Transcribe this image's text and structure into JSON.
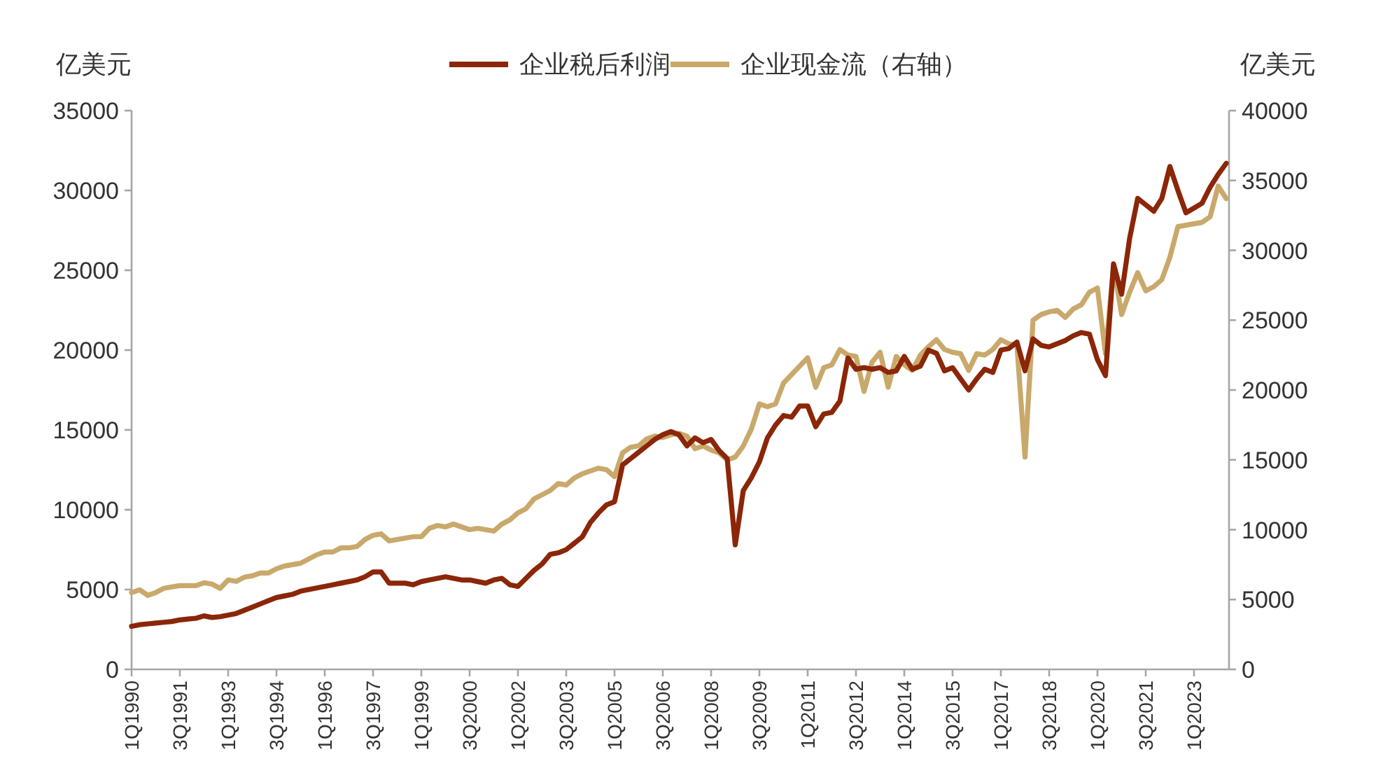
{
  "chart_data": {
    "type": "line",
    "ylabel": "亿美元",
    "y2label": "亿美元",
    "legend": "top",
    "categories": [
      "1Q1990",
      null,
      null,
      null,
      null,
      null,
      "3Q1991",
      null,
      null,
      null,
      null,
      null,
      "1Q1993",
      null,
      null,
      null,
      null,
      null,
      "3Q1994",
      null,
      null,
      null,
      null,
      null,
      "1Q1996",
      null,
      null,
      null,
      null,
      null,
      "3Q1997",
      null,
      null,
      null,
      null,
      null,
      "1Q1999",
      null,
      null,
      null,
      null,
      null,
      "3Q2000",
      null,
      null,
      null,
      null,
      null,
      "1Q2002",
      null,
      null,
      null,
      null,
      null,
      "3Q2003",
      null,
      null,
      null,
      null,
      null,
      "1Q2005",
      null,
      null,
      null,
      null,
      null,
      "3Q2006",
      null,
      null,
      null,
      null,
      null,
      "1Q2008",
      null,
      null,
      null,
      null,
      null,
      "3Q2009",
      null,
      null,
      null,
      null,
      null,
      "1Q2011",
      null,
      null,
      null,
      null,
      null,
      "3Q2012",
      null,
      null,
      null,
      null,
      null,
      "1Q2014",
      null,
      null,
      null,
      null,
      null,
      "3Q2015",
      null,
      null,
      null,
      null,
      null,
      "1Q2017",
      null,
      null,
      null,
      null,
      null,
      "3Q2018",
      null,
      null,
      null,
      null,
      null,
      "1Q2020",
      null,
      null,
      null,
      null,
      null,
      "3Q2021",
      null,
      null,
      null,
      null,
      null,
      "1Q2023",
      null,
      null,
      null,
      null
    ],
    "series": [
      {
        "name": "企业税后利润",
        "color": "#8b2608",
        "values": [
          2700,
          2800,
          2850,
          2900,
          2950,
          3000,
          3100,
          3150,
          3200,
          3350,
          3250,
          3300,
          3400,
          3500,
          3700,
          3900,
          4100,
          4300,
          4500,
          4600,
          4700,
          4900,
          5000,
          5100,
          5200,
          5300,
          5400,
          5500,
          5600,
          5800,
          6100,
          6100,
          5400,
          5400,
          5400,
          5300,
          5500,
          5600,
          5700,
          5800,
          5700,
          5600,
          5600,
          5500,
          5400,
          5600,
          5700,
          5300,
          5200,
          5700,
          6200,
          6600,
          7200,
          7300,
          7500,
          7900,
          8300,
          9200,
          9800,
          10300,
          10500,
          12800,
          13200,
          13600,
          14000,
          14400,
          14700,
          14900,
          14700,
          14000,
          14500,
          14200,
          14400,
          13700,
          13200,
          7800,
          11200,
          12000,
          13000,
          14500,
          15300,
          15900,
          15800,
          16500,
          16500,
          15200,
          16000,
          16100,
          16800,
          19500,
          18800,
          18900,
          18800,
          18900,
          18600,
          18700,
          19600,
          18800,
          19000,
          20000,
          19800,
          18700,
          18900,
          18200,
          17500,
          18200,
          18800,
          18600,
          20000,
          20100,
          20500,
          18700,
          20700,
          20300,
          20200,
          20400,
          20600,
          20900,
          21100,
          21000,
          19400,
          18400,
          25400,
          23500,
          27000,
          29500,
          29100,
          28700,
          29500,
          31500,
          30000,
          28600,
          28900,
          29200,
          30200,
          31000,
          31700
        ]
      },
      {
        "name": "企业现金流（右轴）",
        "color": "#c9a96b",
        "axis": "y2",
        "values": [
          5500,
          5700,
          5300,
          5500,
          5800,
          5900,
          6000,
          6000,
          6000,
          6200,
          6100,
          5800,
          6400,
          6300,
          6600,
          6700,
          6900,
          6900,
          7200,
          7400,
          7500,
          7600,
          7900,
          8200,
          8400,
          8400,
          8700,
          8700,
          8800,
          9300,
          9600,
          9700,
          9200,
          9300,
          9400,
          9500,
          9500,
          10100,
          10300,
          10200,
          10400,
          10200,
          10000,
          10100,
          10000,
          9900,
          10400,
          10700,
          11200,
          11500,
          12200,
          12500,
          12800,
          13300,
          13200,
          13700,
          14000,
          14200,
          14400,
          14300,
          13800,
          15500,
          15900,
          16000,
          16500,
          16700,
          16600,
          16800,
          16900,
          16700,
          15800,
          16000,
          15700,
          15500,
          15000,
          15200,
          16000,
          17200,
          19000,
          18800,
          19000,
          20500,
          21100,
          21700,
          22300,
          20200,
          21600,
          21800,
          22900,
          22500,
          22400,
          19900,
          22000,
          22700,
          20200,
          22400,
          21800,
          21400,
          22500,
          23100,
          23600,
          22900,
          22700,
          22600,
          21400,
          22600,
          22500,
          22900,
          23600,
          23300,
          23200,
          15200,
          25000,
          25400,
          25600,
          25700,
          25200,
          25800,
          26100,
          27000,
          27300,
          22600,
          28900,
          25400,
          27000,
          28400,
          27100,
          27400,
          27900,
          29500,
          31700,
          31800,
          31900,
          32000,
          32400,
          34600,
          33700
        ]
      }
    ],
    "ylim": [
      0,
      35000
    ],
    "yticks": [
      0,
      5000,
      10000,
      15000,
      20000,
      25000,
      30000,
      35000
    ],
    "y2lim": [
      0,
      40000
    ],
    "y2ticks": [
      0,
      5000,
      10000,
      15000,
      20000,
      25000,
      30000,
      35000,
      40000
    ]
  }
}
